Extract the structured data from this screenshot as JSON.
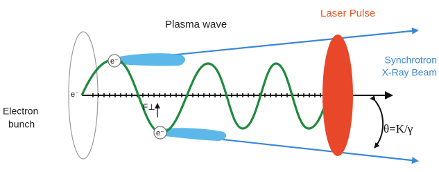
{
  "labels": {
    "plasma_wave": "Plasma wave",
    "laser_pulse": "Laser Pulse",
    "synchrotron": [
      "Synchrotron",
      "X-Ray Beam"
    ],
    "electron_bunch": [
      "Electron",
      "bunch"
    ],
    "electrons": [
      "e⁻",
      "e⁻",
      "e⁻"
    ],
    "force": "F⊥",
    "angle": "θ=K/γ"
  }
}
